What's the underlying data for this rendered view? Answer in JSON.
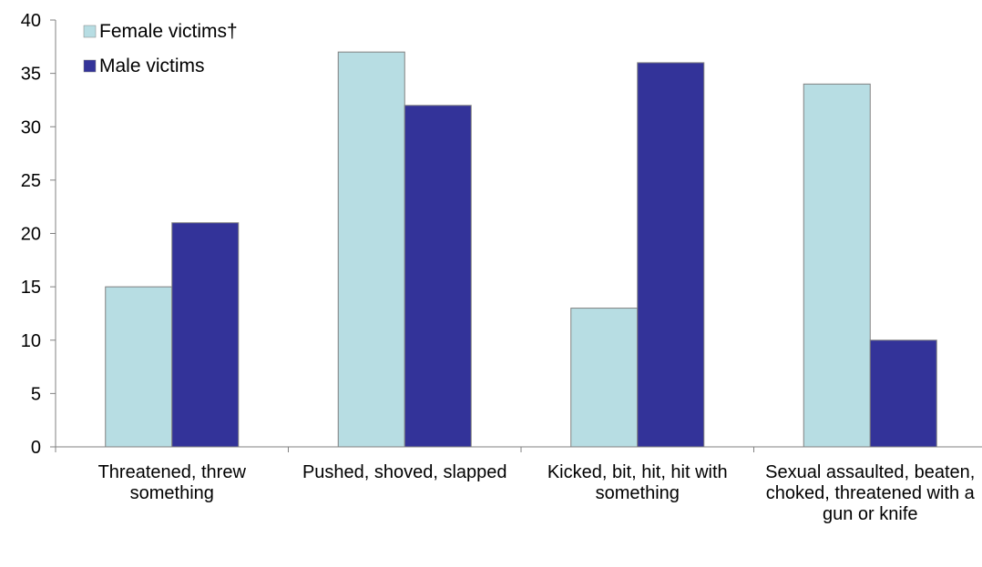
{
  "chart_data": {
    "type": "bar",
    "title": "",
    "xlabel": "",
    "ylabel": "",
    "ylim": [
      0,
      40
    ],
    "yticks": [
      0,
      5,
      10,
      15,
      20,
      25,
      30,
      35,
      40
    ],
    "grid": false,
    "legend_position": "top-left",
    "categories": [
      "Threatened, threw something",
      "Pushed, shoved, slapped",
      "Kicked, bit, hit, hit with something",
      "Sexual assaulted, beaten, choked, threatened with a gun or knife"
    ],
    "series": [
      {
        "name": "Female victims†",
        "color": "#b7dde3",
        "values": [
          15,
          37,
          13,
          34
        ]
      },
      {
        "name": "Male victims",
        "color": "#333399",
        "values": [
          21,
          32,
          36,
          10
        ]
      }
    ]
  }
}
